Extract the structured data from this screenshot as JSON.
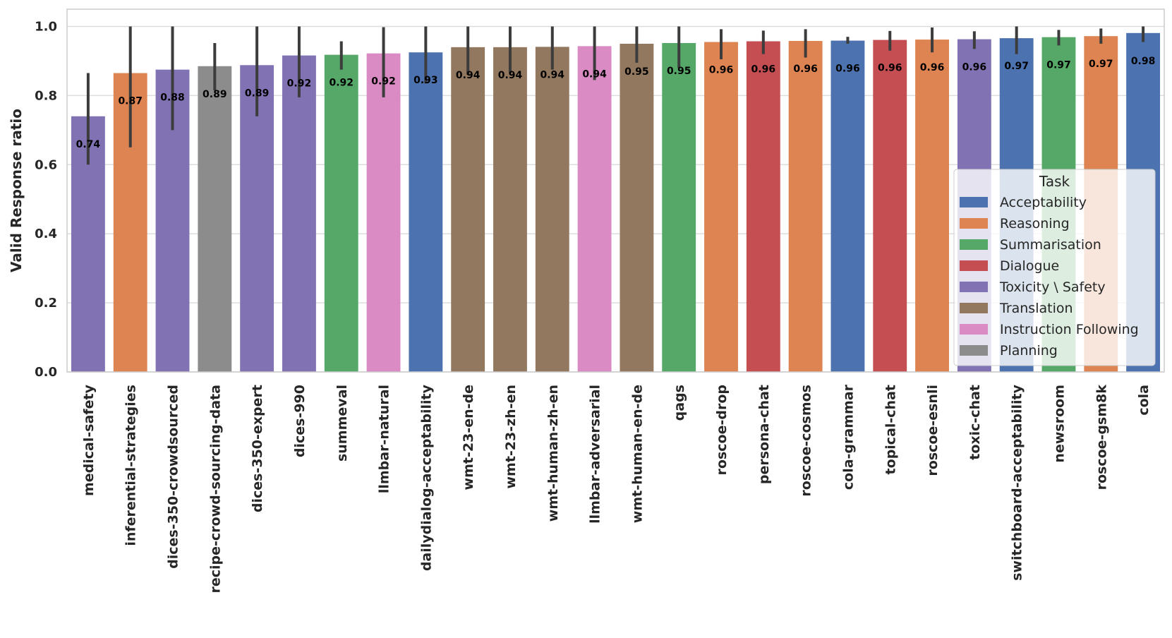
{
  "chart_data": {
    "type": "bar",
    "title": "",
    "xlabel": "",
    "ylabel": "Valid Response ratio",
    "ylim": [
      0,
      1.05
    ],
    "yticks": [
      0.0,
      0.2,
      0.4,
      0.6,
      0.8,
      1.0
    ],
    "ytick_labels": [
      "0.0",
      "0.2",
      "0.4",
      "0.6",
      "0.8",
      "1.0"
    ],
    "grid": true,
    "legend": {
      "title": "Task",
      "placement": "right",
      "entries": [
        {
          "name": "Acceptability",
          "color": "#4c72b0"
        },
        {
          "name": "Reasoning",
          "color": "#dd8452"
        },
        {
          "name": "Summarisation",
          "color": "#55a868"
        },
        {
          "name": "Dialogue",
          "color": "#c44e52"
        },
        {
          "name": "Toxicity \\ Safety",
          "color": "#8172b3"
        },
        {
          "name": "Translation",
          "color": "#937860"
        },
        {
          "name": "Instruction Following",
          "color": "#da8bc3"
        },
        {
          "name": "Planning",
          "color": "#8c8c8c"
        }
      ]
    },
    "categories": [
      "medical-safety",
      "inferential-strategies",
      "dices-350-crowdsourced",
      "recipe-crowd-sourcing-data",
      "dices-350-expert",
      "dices-990",
      "summeval",
      "llmbar-natural",
      "dailydialog-acceptability",
      "wmt-23-en-de",
      "wmt-23-zh-en",
      "wmt-human-zh-en",
      "llmbar-adversarial",
      "wmt-human-en-de",
      "qags",
      "roscoe-drop",
      "persona-chat",
      "roscoe-cosmos",
      "cola-grammar",
      "topical-chat",
      "roscoe-esnli",
      "toxic-chat",
      "switchboard-acceptability",
      "newsroom",
      "roscoe-gsm8k",
      "cola"
    ],
    "tasks": [
      "Toxicity \\ Safety",
      "Reasoning",
      "Toxicity \\ Safety",
      "Planning",
      "Toxicity \\ Safety",
      "Toxicity \\ Safety",
      "Summarisation",
      "Instruction Following",
      "Acceptability",
      "Translation",
      "Translation",
      "Translation",
      "Instruction Following",
      "Translation",
      "Summarisation",
      "Reasoning",
      "Dialogue",
      "Reasoning",
      "Acceptability",
      "Dialogue",
      "Reasoning",
      "Toxicity \\ Safety",
      "Acceptability",
      "Summarisation",
      "Reasoning",
      "Acceptability"
    ],
    "values": [
      0.74,
      0.865,
      0.875,
      0.885,
      0.888,
      0.916,
      0.918,
      0.922,
      0.925,
      0.94,
      0.94,
      0.941,
      0.943,
      0.95,
      0.952,
      0.955,
      0.957,
      0.958,
      0.959,
      0.961,
      0.962,
      0.963,
      0.966,
      0.969,
      0.972,
      0.981
    ],
    "value_labels": [
      "0.74",
      "0.87",
      "0.88",
      "0.89",
      "0.89",
      "0.92",
      "0.92",
      "0.92",
      "0.93",
      "0.94",
      "0.94",
      "0.94",
      "0.94",
      "0.95",
      "0.95",
      "0.96",
      "0.96",
      "0.96",
      "0.96",
      "0.96",
      "0.96",
      "0.96",
      "0.97",
      "0.97",
      "0.97",
      "0.98"
    ],
    "error_low": [
      0.6,
      0.65,
      0.7,
      0.815,
      0.74,
      0.795,
      0.875,
      0.795,
      0.835,
      0.86,
      0.865,
      0.875,
      0.845,
      0.895,
      0.88,
      0.905,
      0.92,
      0.91,
      0.95,
      0.93,
      0.925,
      0.935,
      0.92,
      0.945,
      0.95,
      0.955
    ],
    "error_high": [
      0.865,
      1.0,
      1.0,
      0.952,
      1.0,
      1.0,
      0.957,
      0.998,
      1.0,
      1.0,
      1.0,
      1.0,
      1.0,
      1.0,
      1.0,
      0.992,
      0.988,
      0.992,
      0.97,
      0.987,
      0.997,
      0.986,
      1.0,
      0.99,
      0.994,
      1.0
    ]
  }
}
